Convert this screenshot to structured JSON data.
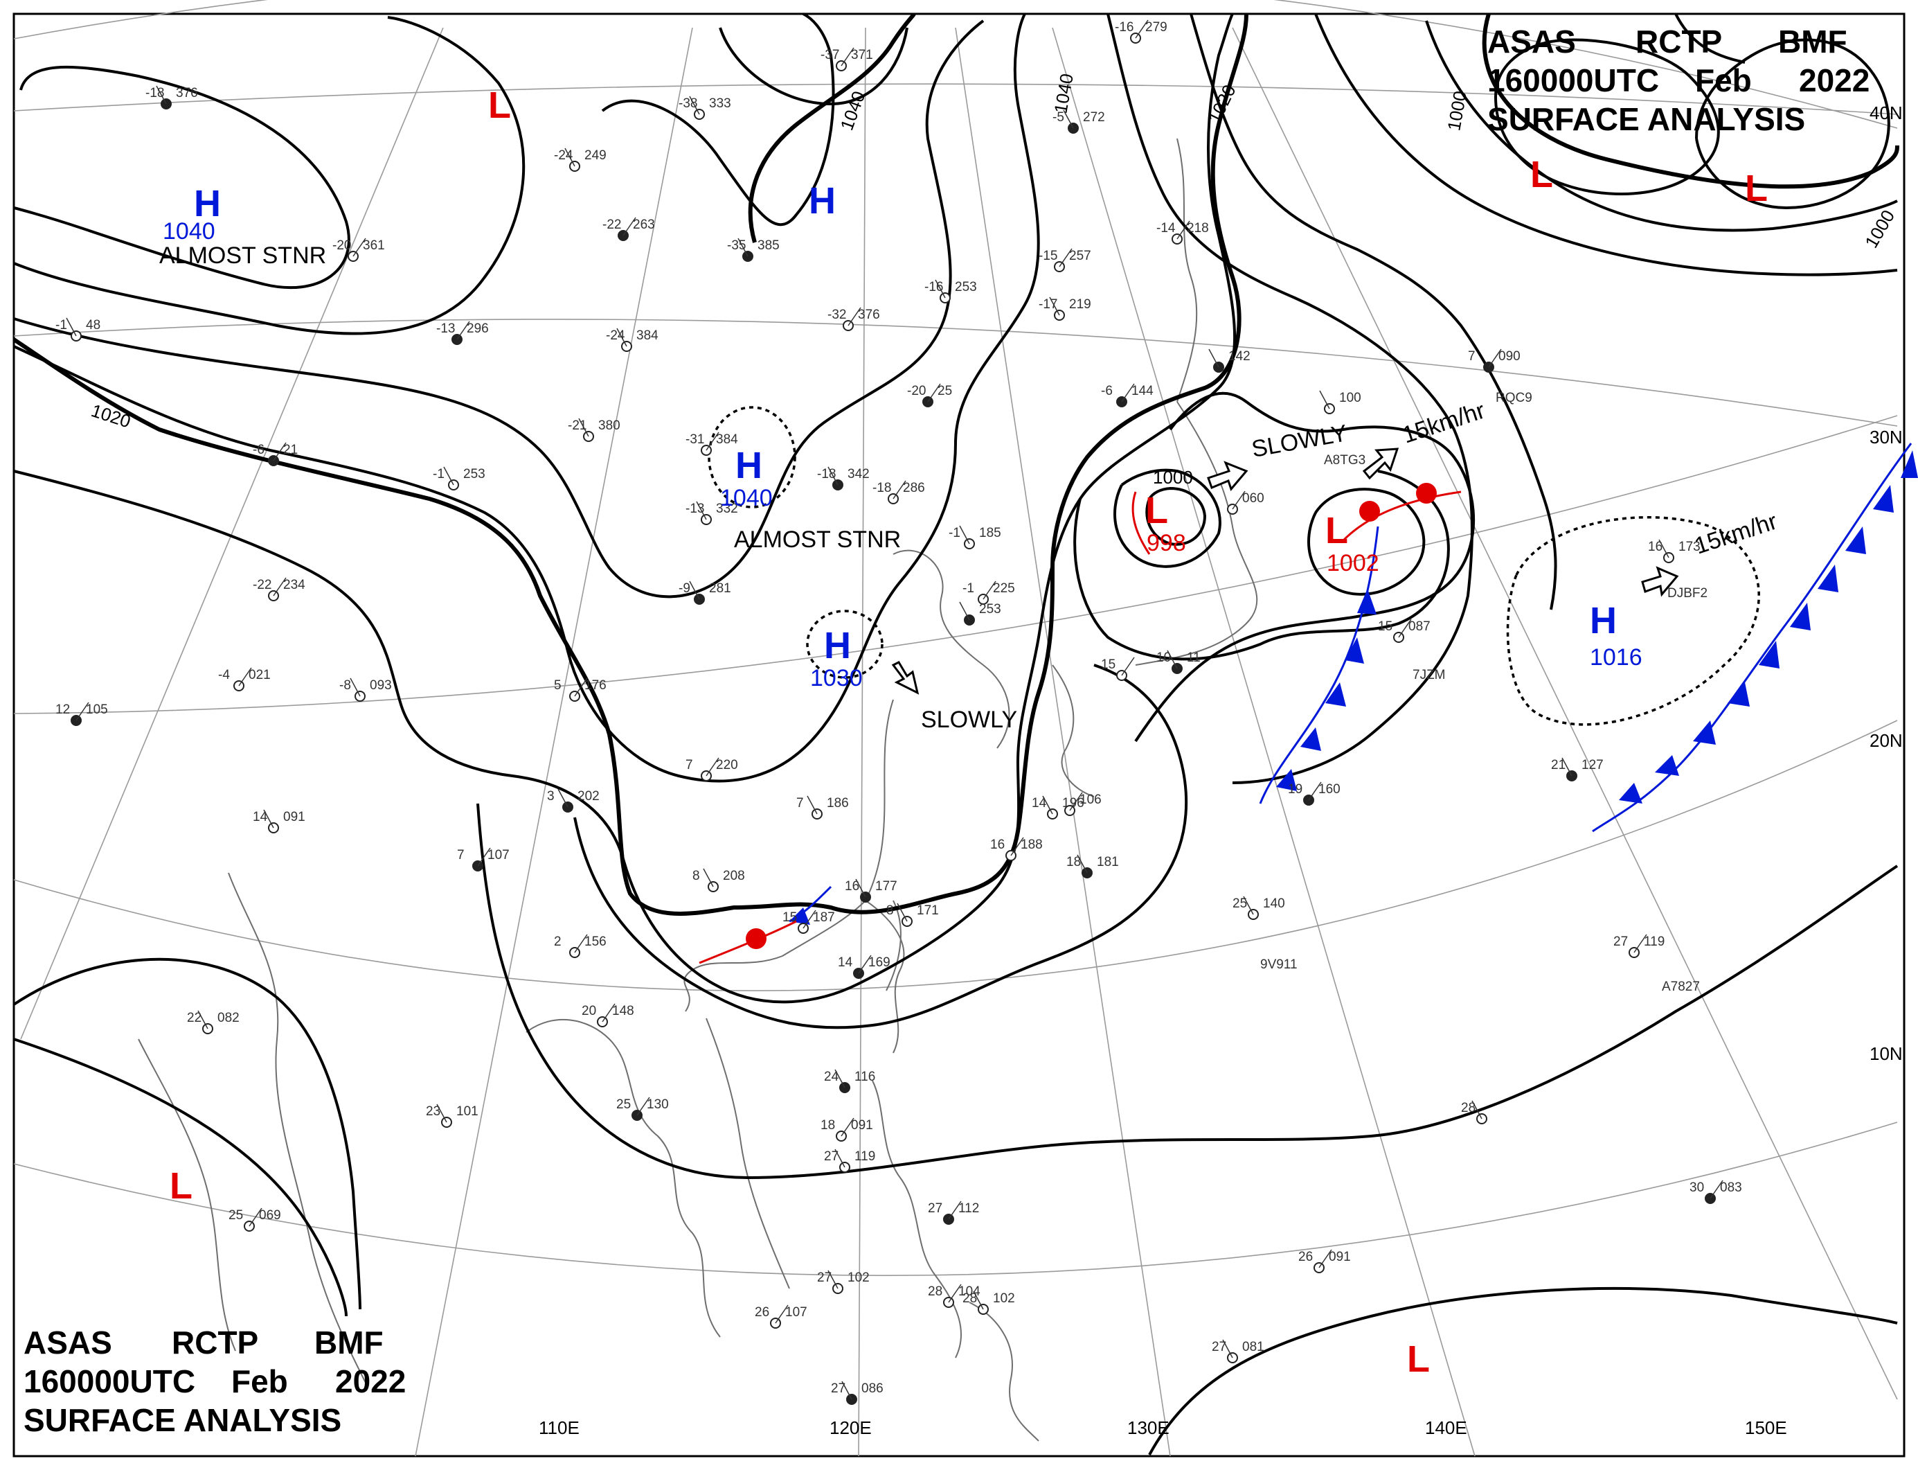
{
  "header": {
    "product": "ASAS",
    "center": "RCTP",
    "agency": "BMF",
    "datetime": "160000UTC",
    "month": "Feb",
    "year": "2022",
    "analysis": "SURFACE ANALYSIS"
  },
  "latitude_labels": [
    "40N",
    "30N",
    "20N",
    "10N"
  ],
  "longitude_labels": [
    "110E",
    "120E",
    "130E",
    "140E",
    "150E"
  ],
  "isobar_labels": [
    "1020",
    "1040",
    "1040",
    "1020",
    "1000",
    "1000",
    "1000"
  ],
  "systems": {
    "highs": [
      {
        "symbol": "H",
        "pressure": "1040",
        "note": "ALMOST STNR"
      },
      {
        "symbol": "H",
        "pressure": ""
      },
      {
        "symbol": "H",
        "pressure": "1040",
        "note": "ALMOST STNR"
      },
      {
        "symbol": "H",
        "pressure": "1030",
        "note": "SLOWLY"
      },
      {
        "symbol": "H",
        "pressure": "1016",
        "note": "15km/hr"
      }
    ],
    "lows": [
      {
        "symbol": "L",
        "pressure": ""
      },
      {
        "symbol": "L",
        "pressure": ""
      },
      {
        "symbol": "L",
        "pressure": ""
      },
      {
        "symbol": "L",
        "pressure": "998",
        "note": "SLOWLY"
      },
      {
        "symbol": "L",
        "pressure": "1002",
        "note": "15km/hr"
      },
      {
        "symbol": "L",
        "pressure": ""
      },
      {
        "symbol": "L",
        "pressure": ""
      }
    ]
  },
  "ship_ids": [
    "A8TG3",
    "RQC9",
    "7JZM",
    "DJBF2",
    "9V911",
    "A7827"
  ],
  "stations": [
    {
      "t": "-18",
      "p": "376"
    },
    {
      "t": "-20",
      "p": "361"
    },
    {
      "t": "-24",
      "p": "249"
    },
    {
      "t": "-22",
      "p": "263"
    },
    {
      "t": "-38",
      "p": "333"
    },
    {
      "t": "-37",
      "p": "371"
    },
    {
      "t": "-35",
      "p": "385"
    },
    {
      "t": "-32",
      "p": "376"
    },
    {
      "t": "-24",
      "p": "384"
    },
    {
      "t": "-13",
      "p": "296"
    },
    {
      "t": "-16",
      "p": "253"
    },
    {
      "t": "-16",
      "p": "279"
    },
    {
      "t": "-5",
      "p": "272"
    },
    {
      "t": "-15",
      "p": "257"
    },
    {
      "t": "-17",
      "p": "219"
    },
    {
      "t": "-20",
      "p": "25"
    },
    {
      "t": "-21",
      "p": "380"
    },
    {
      "t": "-31",
      "p": "384"
    },
    {
      "t": "-18",
      "p": "342"
    },
    {
      "t": "-18",
      "p": "286"
    },
    {
      "t": "-13",
      "p": "332"
    },
    {
      "t": "-6",
      "p": "144"
    },
    {
      "t": "-1",
      "p": "253"
    },
    {
      "t": "-22",
      "p": "234"
    },
    {
      "t": "-9",
      "p": "281"
    },
    {
      "t": "-4",
      "p": "021"
    },
    {
      "t": "-8",
      "p": "093"
    },
    {
      "t": "12",
      "p": "105"
    },
    {
      "t": "14",
      "p": "091"
    },
    {
      "t": "5",
      "p": "176"
    },
    {
      "t": "3",
      "p": "202"
    },
    {
      "t": "7",
      "p": "220"
    },
    {
      "t": "7",
      "p": "186"
    },
    {
      "t": "7",
      "p": "107"
    },
    {
      "t": "8",
      "p": "208"
    },
    {
      "t": "2",
      "p": "156"
    },
    {
      "t": "16",
      "p": "177"
    },
    {
      "t": "15",
      "p": "187"
    },
    {
      "t": "8",
      "p": "171"
    },
    {
      "t": "14",
      "p": "169"
    },
    {
      "t": "14",
      "p": "196"
    },
    {
      "t": "16",
      "p": "188"
    },
    {
      "t": "18",
      "p": "181"
    },
    {
      "t": "20",
      "p": "148"
    },
    {
      "t": "22",
      "p": "082"
    },
    {
      "t": "25",
      "p": "130"
    },
    {
      "t": "23",
      "p": "101"
    },
    {
      "t": "25",
      "p": "069"
    },
    {
      "t": "24",
      "p": "116"
    },
    {
      "t": "18",
      "p": "091"
    },
    {
      "t": "27",
      "p": "119"
    },
    {
      "t": "27",
      "p": "112"
    },
    {
      "t": "27",
      "p": "102"
    },
    {
      "t": "26",
      "p": "107"
    },
    {
      "t": "27",
      "p": "086"
    },
    {
      "t": "28",
      "p": "104"
    },
    {
      "t": "28",
      "p": "102"
    },
    {
      "t": "19",
      "p": "160"
    },
    {
      "t": "25",
      "p": "140"
    },
    {
      "t": "27",
      "p": "119"
    },
    {
      "t": "21",
      "p": "127"
    },
    {
      "t": "26",
      "p": "091"
    },
    {
      "t": "27",
      "p": "081"
    },
    {
      "t": "30",
      "p": "083"
    },
    {
      "t": "28",
      "p": ""
    },
    {
      "t": "15",
      "p": "087"
    },
    {
      "t": "10",
      "p": "11"
    },
    {
      "t": "15",
      "p": ""
    },
    {
      "t": "16",
      "p": "173"
    },
    {
      "t": "7",
      "p": "090"
    },
    {
      "t": "",
      "p": "100"
    },
    {
      "t": "",
      "p": "060"
    },
    {
      "t": "",
      "p": "142"
    },
    {
      "t": "-14",
      "p": "218"
    },
    {
      "t": "-1",
      "p": "48"
    },
    {
      "t": "-6",
      "p": "21"
    },
    {
      "t": "-1",
      "p": "185"
    },
    {
      "t": "-1",
      "p": "225"
    },
    {
      "t": "",
      "p": "253"
    },
    {
      "t": "",
      "p": "106"
    }
  ],
  "colors": {
    "isobar": "#000000",
    "high": "#0018d8",
    "low": "#e00000",
    "cold_front": "#0018d8",
    "warm_front": "#e00000",
    "coast": "#777777",
    "grid": "#999999"
  }
}
